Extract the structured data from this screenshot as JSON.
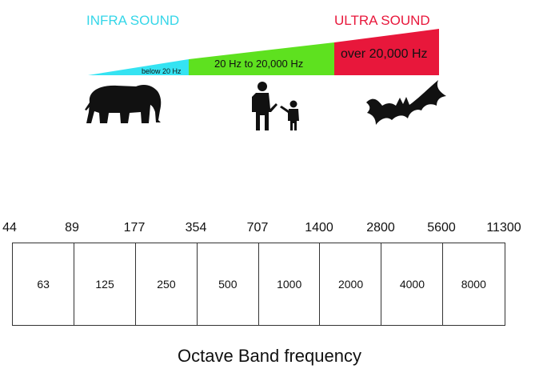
{
  "header": {
    "infra_label": "INFRA SOUND",
    "ultra_label": "ULTRA SOUND"
  },
  "ranges": {
    "infra_text": "below 20 Hz",
    "audible_text": "20 Hz  to  20,000 Hz",
    "ultra_text": "over  20,000 Hz"
  },
  "colors": {
    "infra_title": "#35d6e8",
    "ultra_title": "#e8173b",
    "infra_band": "#35e3f2",
    "audible_band": "#5ee11f",
    "ultra_band": "#e8173b",
    "silhouette": "#111111",
    "box_border": "#333333"
  },
  "icons": [
    "elephant-icon",
    "adult-and-child-icon",
    "bat-icon"
  ],
  "octave": {
    "title": "Octave Band frequency",
    "edges": [
      "44",
      "89",
      "177",
      "354",
      "707",
      "1400",
      "2800",
      "5600",
      "11300"
    ],
    "centers": [
      "63",
      "125",
      "250",
      "500",
      "1000",
      "2000",
      "4000",
      "8000"
    ]
  }
}
